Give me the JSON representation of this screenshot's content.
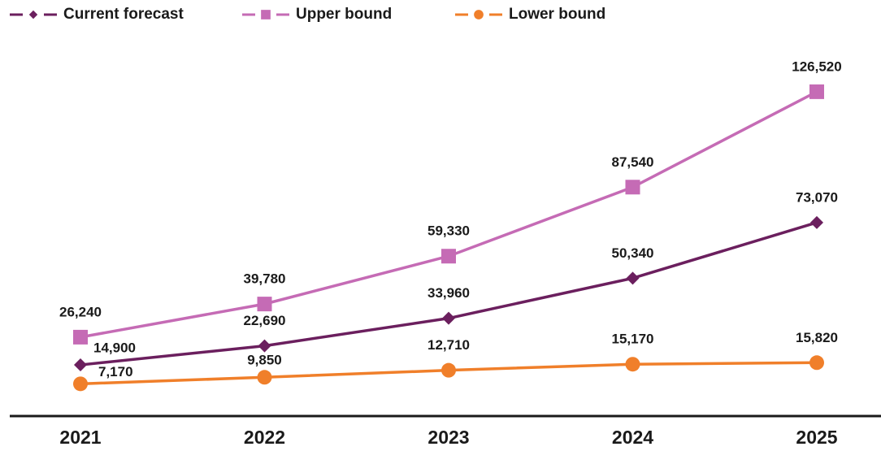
{
  "chart_data": {
    "type": "line",
    "categories": [
      "2021",
      "2022",
      "2023",
      "2024",
      "2025"
    ],
    "series": [
      {
        "name": "Current forecast",
        "color": "#6b1f5e",
        "marker": "diamond",
        "values": [
          14900,
          22690,
          33960,
          50340,
          73070
        ],
        "value_labels": [
          "14,900",
          "22,690",
          "33,960",
          "50,340",
          "73,070"
        ]
      },
      {
        "name": "Upper bound",
        "color": "#c56bb5",
        "marker": "square",
        "values": [
          26240,
          39780,
          59330,
          87540,
          126520
        ],
        "value_labels": [
          "26,240",
          "39,780",
          "59,330",
          "87,540",
          "126,520"
        ]
      },
      {
        "name": "Lower bound",
        "color": "#f07f2a",
        "marker": "circle",
        "values": [
          7170,
          9850,
          12710,
          15170,
          15820
        ],
        "value_labels": [
          "7,170",
          "9,850",
          "12,710",
          "15,170",
          "15,820"
        ]
      }
    ],
    "ylim": [
      -6000,
      164000
    ],
    "legend": "top-left"
  }
}
